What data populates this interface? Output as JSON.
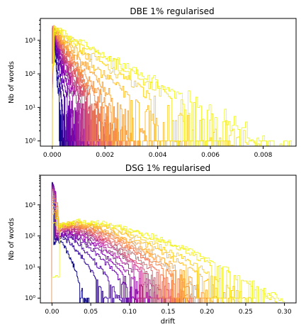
{
  "chart_data": [
    {
      "type": "histogram",
      "title": "DBE 1% regularised",
      "xlabel": "",
      "ylabel": "Nb of words",
      "xscale": "linear",
      "yscale": "log",
      "xlim": [
        -0.00045,
        0.00925
      ],
      "ylim": [
        0.7,
        4500
      ],
      "xticks": [
        0.0,
        0.002,
        0.004,
        0.006,
        0.008
      ],
      "xtick_labels": [
        "0.000",
        "0.002",
        "0.004",
        "0.006",
        "0.008"
      ],
      "yticks": [
        1,
        10,
        100,
        1000
      ],
      "ytick_labels": [
        "10⁰",
        "10¹",
        "10²",
        "10³"
      ],
      "histtype": "step",
      "colormap": "plasma",
      "colors": [
        "#0d0887",
        "#2f0596",
        "#4903a0",
        "#6300a7",
        "#7a02a8",
        "#900da4",
        "#a51f99",
        "#b6308b",
        "#c5407e",
        "#d35171",
        "#de6164",
        "#e87257",
        "#f1834b",
        "#f8963f",
        "#fca835",
        "#febd2a",
        "#fbd124",
        "#f5e726",
        "#f0f921"
      ],
      "series_model": "peak ~3000 near drift 0.0001, decays log-linearly; later series wider",
      "peak_count": 3000,
      "peak_x": 0.0001,
      "xmax_per_series": [
        0.00045,
        0.0006,
        0.0008,
        0.001,
        0.0012,
        0.0014,
        0.0016,
        0.0018,
        0.002,
        0.0022,
        0.0024,
        0.0026,
        0.0029,
        0.0033,
        0.004,
        0.0052,
        0.0068,
        0.0082,
        0.009
      ]
    },
    {
      "type": "histogram",
      "title": "DSG 1% regularised",
      "xlabel": "drift",
      "ylabel": "Nb of words",
      "xscale": "linear",
      "yscale": "log",
      "xlim": [
        -0.015,
        0.315
      ],
      "ylim": [
        0.7,
        9000
      ],
      "xticks": [
        0.0,
        0.05,
        0.1,
        0.15,
        0.2,
        0.25,
        0.3
      ],
      "xtick_labels": [
        "0.00",
        "0.05",
        "0.10",
        "0.15",
        "0.20",
        "0.25",
        "0.30"
      ],
      "yticks": [
        1,
        10,
        100,
        1000
      ],
      "ytick_labels": [
        "10⁰",
        "10¹",
        "10²",
        "10³"
      ],
      "histtype": "step",
      "colormap": "plasma",
      "colors": [
        "#0d0887",
        "#2f0596",
        "#4903a0",
        "#6300a7",
        "#7a02a8",
        "#900da4",
        "#a51f99",
        "#b6308b",
        "#c5407e",
        "#d35171",
        "#de6164",
        "#e87257",
        "#f1834b",
        "#f8963f",
        "#fca835",
        "#febd2a",
        "#fbd124",
        "#f5e726",
        "#f0f921"
      ],
      "series_model": "spike ~5000 at drift 0.0 for early series, plateau ~300 for later series, tail to ~0.3",
      "peak_count": 5000,
      "plateau_count": 300,
      "xmax_per_series": [
        0.05,
        0.08,
        0.1,
        0.12,
        0.13,
        0.14,
        0.15,
        0.16,
        0.165,
        0.17,
        0.18,
        0.19,
        0.2,
        0.21,
        0.22,
        0.24,
        0.26,
        0.29,
        0.3
      ]
    }
  ]
}
